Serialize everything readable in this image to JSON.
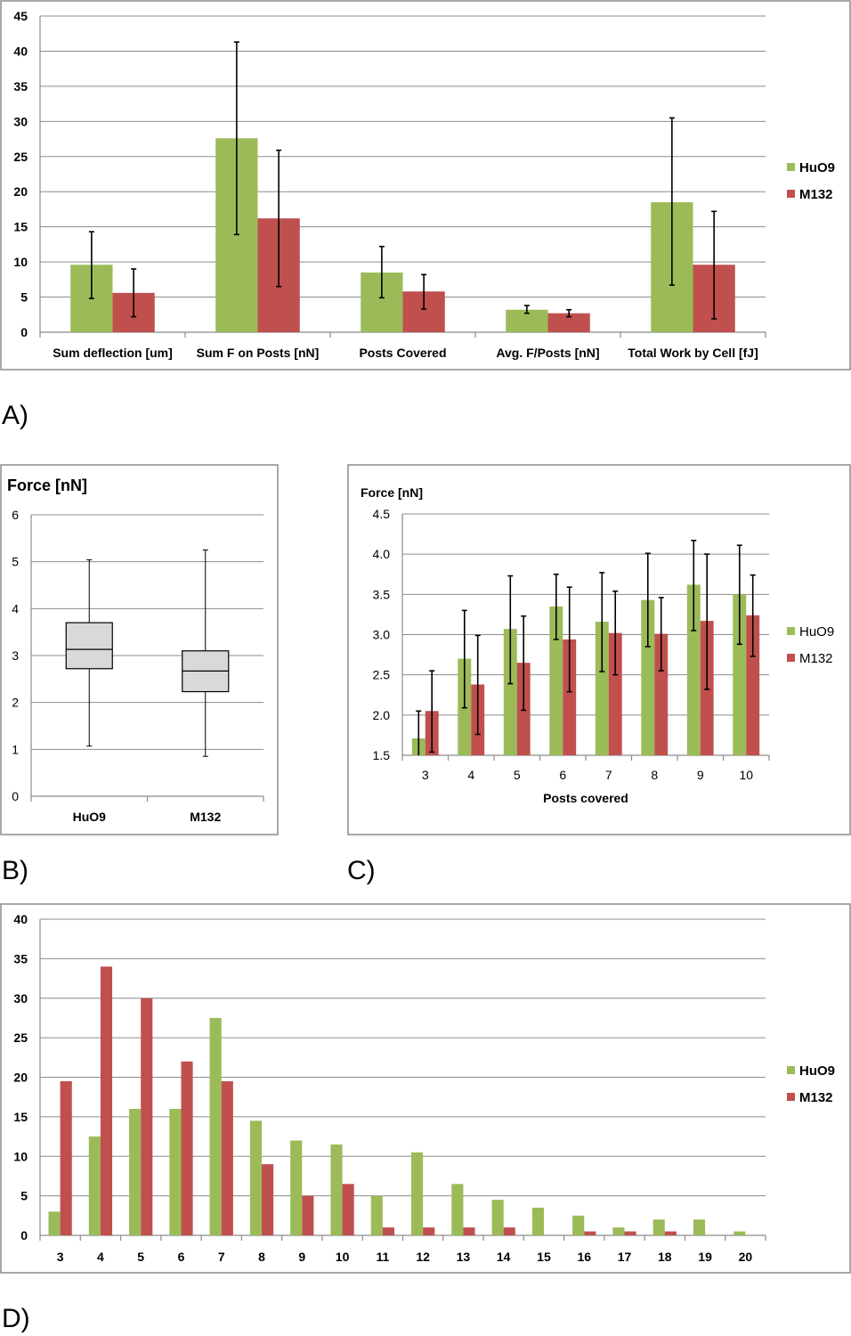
{
  "colors": {
    "HuO9": "#9bbb59",
    "M132": "#c0504d",
    "box": "#d9d9d9"
  },
  "panel_labels": [
    "A)",
    "B)",
    "C)",
    "D)"
  ],
  "chart_data": [
    {
      "id": "A",
      "type": "bar",
      "title": "",
      "xlabel": "",
      "ylabel": "",
      "ylim": [
        0,
        45
      ],
      "yticks": [
        "0",
        "5",
        "10",
        "15",
        "20",
        "25",
        "30",
        "35",
        "40",
        "45"
      ],
      "ystep": 5,
      "categories": [
        "Sum deflection [um]",
        "Sum F on Posts [nN]",
        "Posts Covered",
        "Avg. F/Posts [nN]",
        "Total Work by Cell [fJ]"
      ],
      "legend": "right",
      "grid": true,
      "series": [
        {
          "name": "HuO9",
          "values": [
            9.6,
            27.6,
            8.5,
            3.2,
            18.5
          ],
          "err_low": [
            4.8,
            13.9,
            4.9,
            2.7,
            6.7
          ],
          "err_high": [
            14.3,
            41.3,
            12.2,
            3.8,
            30.5
          ]
        },
        {
          "name": "M132",
          "values": [
            5.6,
            16.2,
            5.8,
            2.7,
            9.6
          ],
          "err_low": [
            2.2,
            6.5,
            3.3,
            2.2,
            1.9
          ],
          "err_high": [
            9.0,
            25.9,
            8.2,
            3.2,
            17.2
          ]
        }
      ]
    },
    {
      "id": "B",
      "type": "box",
      "title": "Force [nN]",
      "xlabel": "",
      "ylabel": "",
      "ylim": [
        0,
        6
      ],
      "yticks": [
        "0",
        "1",
        "2",
        "3",
        "4",
        "5",
        "6"
      ],
      "ystep": 1,
      "grid": true,
      "categories": [
        "HuO9",
        "M132"
      ],
      "boxes": [
        {
          "min": 1.07,
          "q1": 2.72,
          "median": 3.13,
          "q3": 3.7,
          "max": 5.04
        },
        {
          "min": 0.85,
          "q1": 2.23,
          "median": 2.67,
          "q3": 3.1,
          "max": 5.25
        }
      ]
    },
    {
      "id": "C",
      "type": "bar",
      "title": "Force [nN]",
      "xlabel": "Posts covered",
      "ylabel": "",
      "ylim": [
        1.5,
        4.5
      ],
      "yticks": [
        "1.5",
        "2.0",
        "2.5",
        "3.0",
        "3.5",
        "4.0",
        "4.5"
      ],
      "ystep": 0.5,
      "categories": [
        "3",
        "4",
        "5",
        "6",
        "7",
        "8",
        "9",
        "10"
      ],
      "legend": "right",
      "grid": true,
      "series": [
        {
          "name": "HuO9",
          "values": [
            1.71,
            2.7,
            3.07,
            3.35,
            3.16,
            3.43,
            3.62,
            3.5
          ],
          "err_low": [
            1.37,
            2.09,
            2.39,
            2.94,
            2.54,
            2.85,
            3.05,
            2.88
          ],
          "err_high": [
            2.05,
            3.3,
            3.73,
            3.75,
            3.77,
            4.01,
            4.17,
            4.11
          ]
        },
        {
          "name": "M132",
          "values": [
            2.05,
            2.38,
            2.65,
            2.94,
            3.02,
            3.01,
            3.17,
            3.24
          ],
          "err_low": [
            1.54,
            1.76,
            2.06,
            2.29,
            2.5,
            2.55,
            2.32,
            2.73
          ],
          "err_high": [
            2.55,
            2.99,
            3.23,
            3.59,
            3.54,
            3.46,
            4.0,
            3.74
          ]
        }
      ]
    },
    {
      "id": "D",
      "type": "bar",
      "title": "",
      "xlabel": "",
      "ylabel": "",
      "ylim": [
        0,
        40
      ],
      "yticks": [
        "0",
        "5",
        "10",
        "15",
        "20",
        "25",
        "30",
        "35",
        "40"
      ],
      "ystep": 5,
      "categories": [
        "3",
        "4",
        "5",
        "6",
        "7",
        "8",
        "9",
        "10",
        "11",
        "12",
        "13",
        "14",
        "15",
        "16",
        "17",
        "18",
        "19",
        "20"
      ],
      "legend": "right",
      "grid": true,
      "series": [
        {
          "name": "HuO9",
          "values": [
            3,
            12.5,
            16,
            16,
            27.5,
            14.5,
            12,
            11.5,
            5,
            10.5,
            6.5,
            4.5,
            3.5,
            2.5,
            1,
            2,
            2,
            0.5
          ]
        },
        {
          "name": "M132",
          "values": [
            19.5,
            34,
            30,
            22,
            19.5,
            9,
            5,
            6.5,
            1,
            1,
            1,
            1,
            0,
            0.5,
            0.5,
            0.5,
            0,
            0
          ]
        }
      ]
    }
  ]
}
